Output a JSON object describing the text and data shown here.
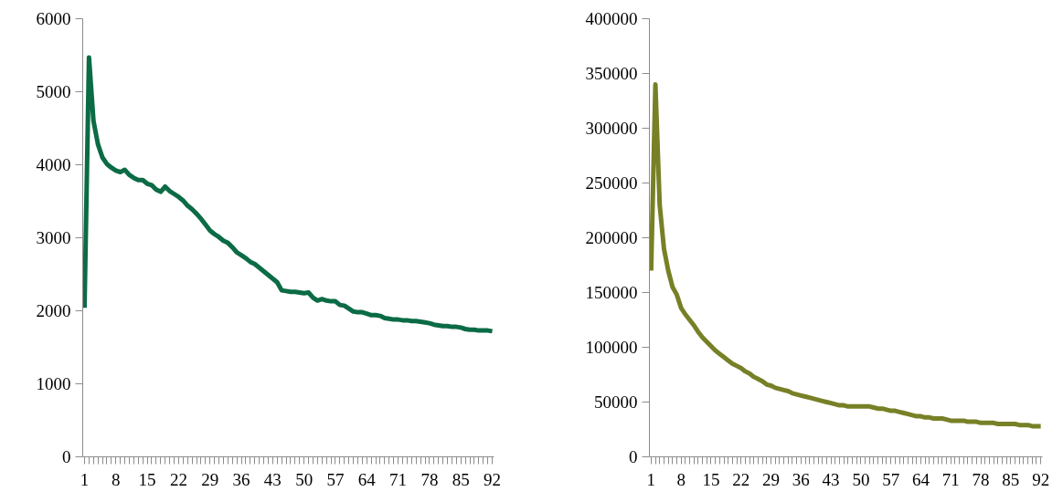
{
  "chart_data": [
    {
      "type": "line",
      "categories": [
        "1",
        null,
        null,
        null,
        null,
        null,
        null,
        "8",
        null,
        null,
        null,
        null,
        null,
        null,
        "15",
        null,
        null,
        null,
        null,
        null,
        null,
        "22",
        null,
        null,
        null,
        null,
        null,
        null,
        "29",
        null,
        null,
        null,
        null,
        null,
        null,
        "36",
        null,
        null,
        null,
        null,
        null,
        null,
        "43",
        null,
        null,
        null,
        null,
        null,
        null,
        "50",
        null,
        null,
        null,
        null,
        null,
        null,
        "57",
        null,
        null,
        null,
        null,
        null,
        null,
        "64",
        null,
        null,
        null,
        null,
        null,
        null,
        "71",
        null,
        null,
        null,
        null,
        null,
        null,
        "78",
        null,
        null,
        null,
        null,
        null,
        null,
        "85",
        null,
        null,
        null,
        null,
        null,
        null,
        "92"
      ],
      "series": [
        {
          "color": "#0b6b45",
          "values": [
            2040,
            5470,
            4600,
            4280,
            4100,
            4010,
            3960,
            3920,
            3900,
            3930,
            3860,
            3820,
            3790,
            3790,
            3740,
            3720,
            3660,
            3630,
            3700,
            3640,
            3600,
            3560,
            3510,
            3440,
            3390,
            3330,
            3260,
            3180,
            3100,
            3050,
            3010,
            2960,
            2930,
            2870,
            2800,
            2760,
            2720,
            2670,
            2640,
            2590,
            2540,
            2490,
            2440,
            2390,
            2280,
            2270,
            2260,
            2260,
            2250,
            2240,
            2250,
            2180,
            2140,
            2160,
            2140,
            2130,
            2130,
            2080,
            2070,
            2030,
            1990,
            1980,
            1980,
            1960,
            1940,
            1940,
            1930,
            1900,
            1890,
            1880,
            1880,
            1870,
            1870,
            1860,
            1860,
            1850,
            1840,
            1830,
            1810,
            1800,
            1790,
            1790,
            1780,
            1780,
            1770,
            1750,
            1740,
            1740,
            1730,
            1730,
            1730,
            1720
          ]
        }
      ],
      "ylim": [
        0,
        6000
      ],
      "yticks": [
        0,
        1000,
        2000,
        3000,
        4000,
        5000,
        6000
      ]
    },
    {
      "type": "line",
      "categories": [
        "1",
        null,
        null,
        null,
        null,
        null,
        null,
        "8",
        null,
        null,
        null,
        null,
        null,
        null,
        "15",
        null,
        null,
        null,
        null,
        null,
        null,
        "22",
        null,
        null,
        null,
        null,
        null,
        null,
        "29",
        null,
        null,
        null,
        null,
        null,
        null,
        "36",
        null,
        null,
        null,
        null,
        null,
        null,
        "43",
        null,
        null,
        null,
        null,
        null,
        null,
        "50",
        null,
        null,
        null,
        null,
        null,
        null,
        "57",
        null,
        null,
        null,
        null,
        null,
        null,
        "64",
        null,
        null,
        null,
        null,
        null,
        null,
        "71",
        null,
        null,
        null,
        null,
        null,
        null,
        "78",
        null,
        null,
        null,
        null,
        null,
        null,
        "85",
        null,
        null,
        null,
        null,
        null,
        null,
        "92"
      ],
      "series": [
        {
          "color": "#778026",
          "values": [
            170000,
            340000,
            230000,
            190000,
            170000,
            155000,
            148000,
            136000,
            130000,
            125000,
            120000,
            114000,
            109000,
            105000,
            101000,
            97000,
            94000,
            91000,
            88000,
            85000,
            83000,
            81000,
            78000,
            76000,
            73000,
            71000,
            69000,
            66000,
            65000,
            63000,
            62000,
            61000,
            60000,
            58000,
            57000,
            56000,
            55000,
            54000,
            53000,
            52000,
            51000,
            50000,
            49000,
            48000,
            47000,
            47000,
            46000,
            46000,
            46000,
            46000,
            46000,
            46000,
            45000,
            44000,
            44000,
            43000,
            42000,
            42000,
            41000,
            40000,
            39000,
            38000,
            37000,
            37000,
            36000,
            36000,
            35000,
            35000,
            35000,
            34000,
            33000,
            33000,
            33000,
            33000,
            32000,
            32000,
            32000,
            31000,
            31000,
            31000,
            31000,
            30000,
            30000,
            30000,
            30000,
            30000,
            29000,
            29000,
            29000,
            28000,
            28000,
            28000
          ]
        }
      ],
      "ylim": [
        0,
        400000
      ],
      "yticks": [
        0,
        50000,
        100000,
        150000,
        200000,
        250000,
        300000,
        350000,
        400000
      ]
    }
  ]
}
